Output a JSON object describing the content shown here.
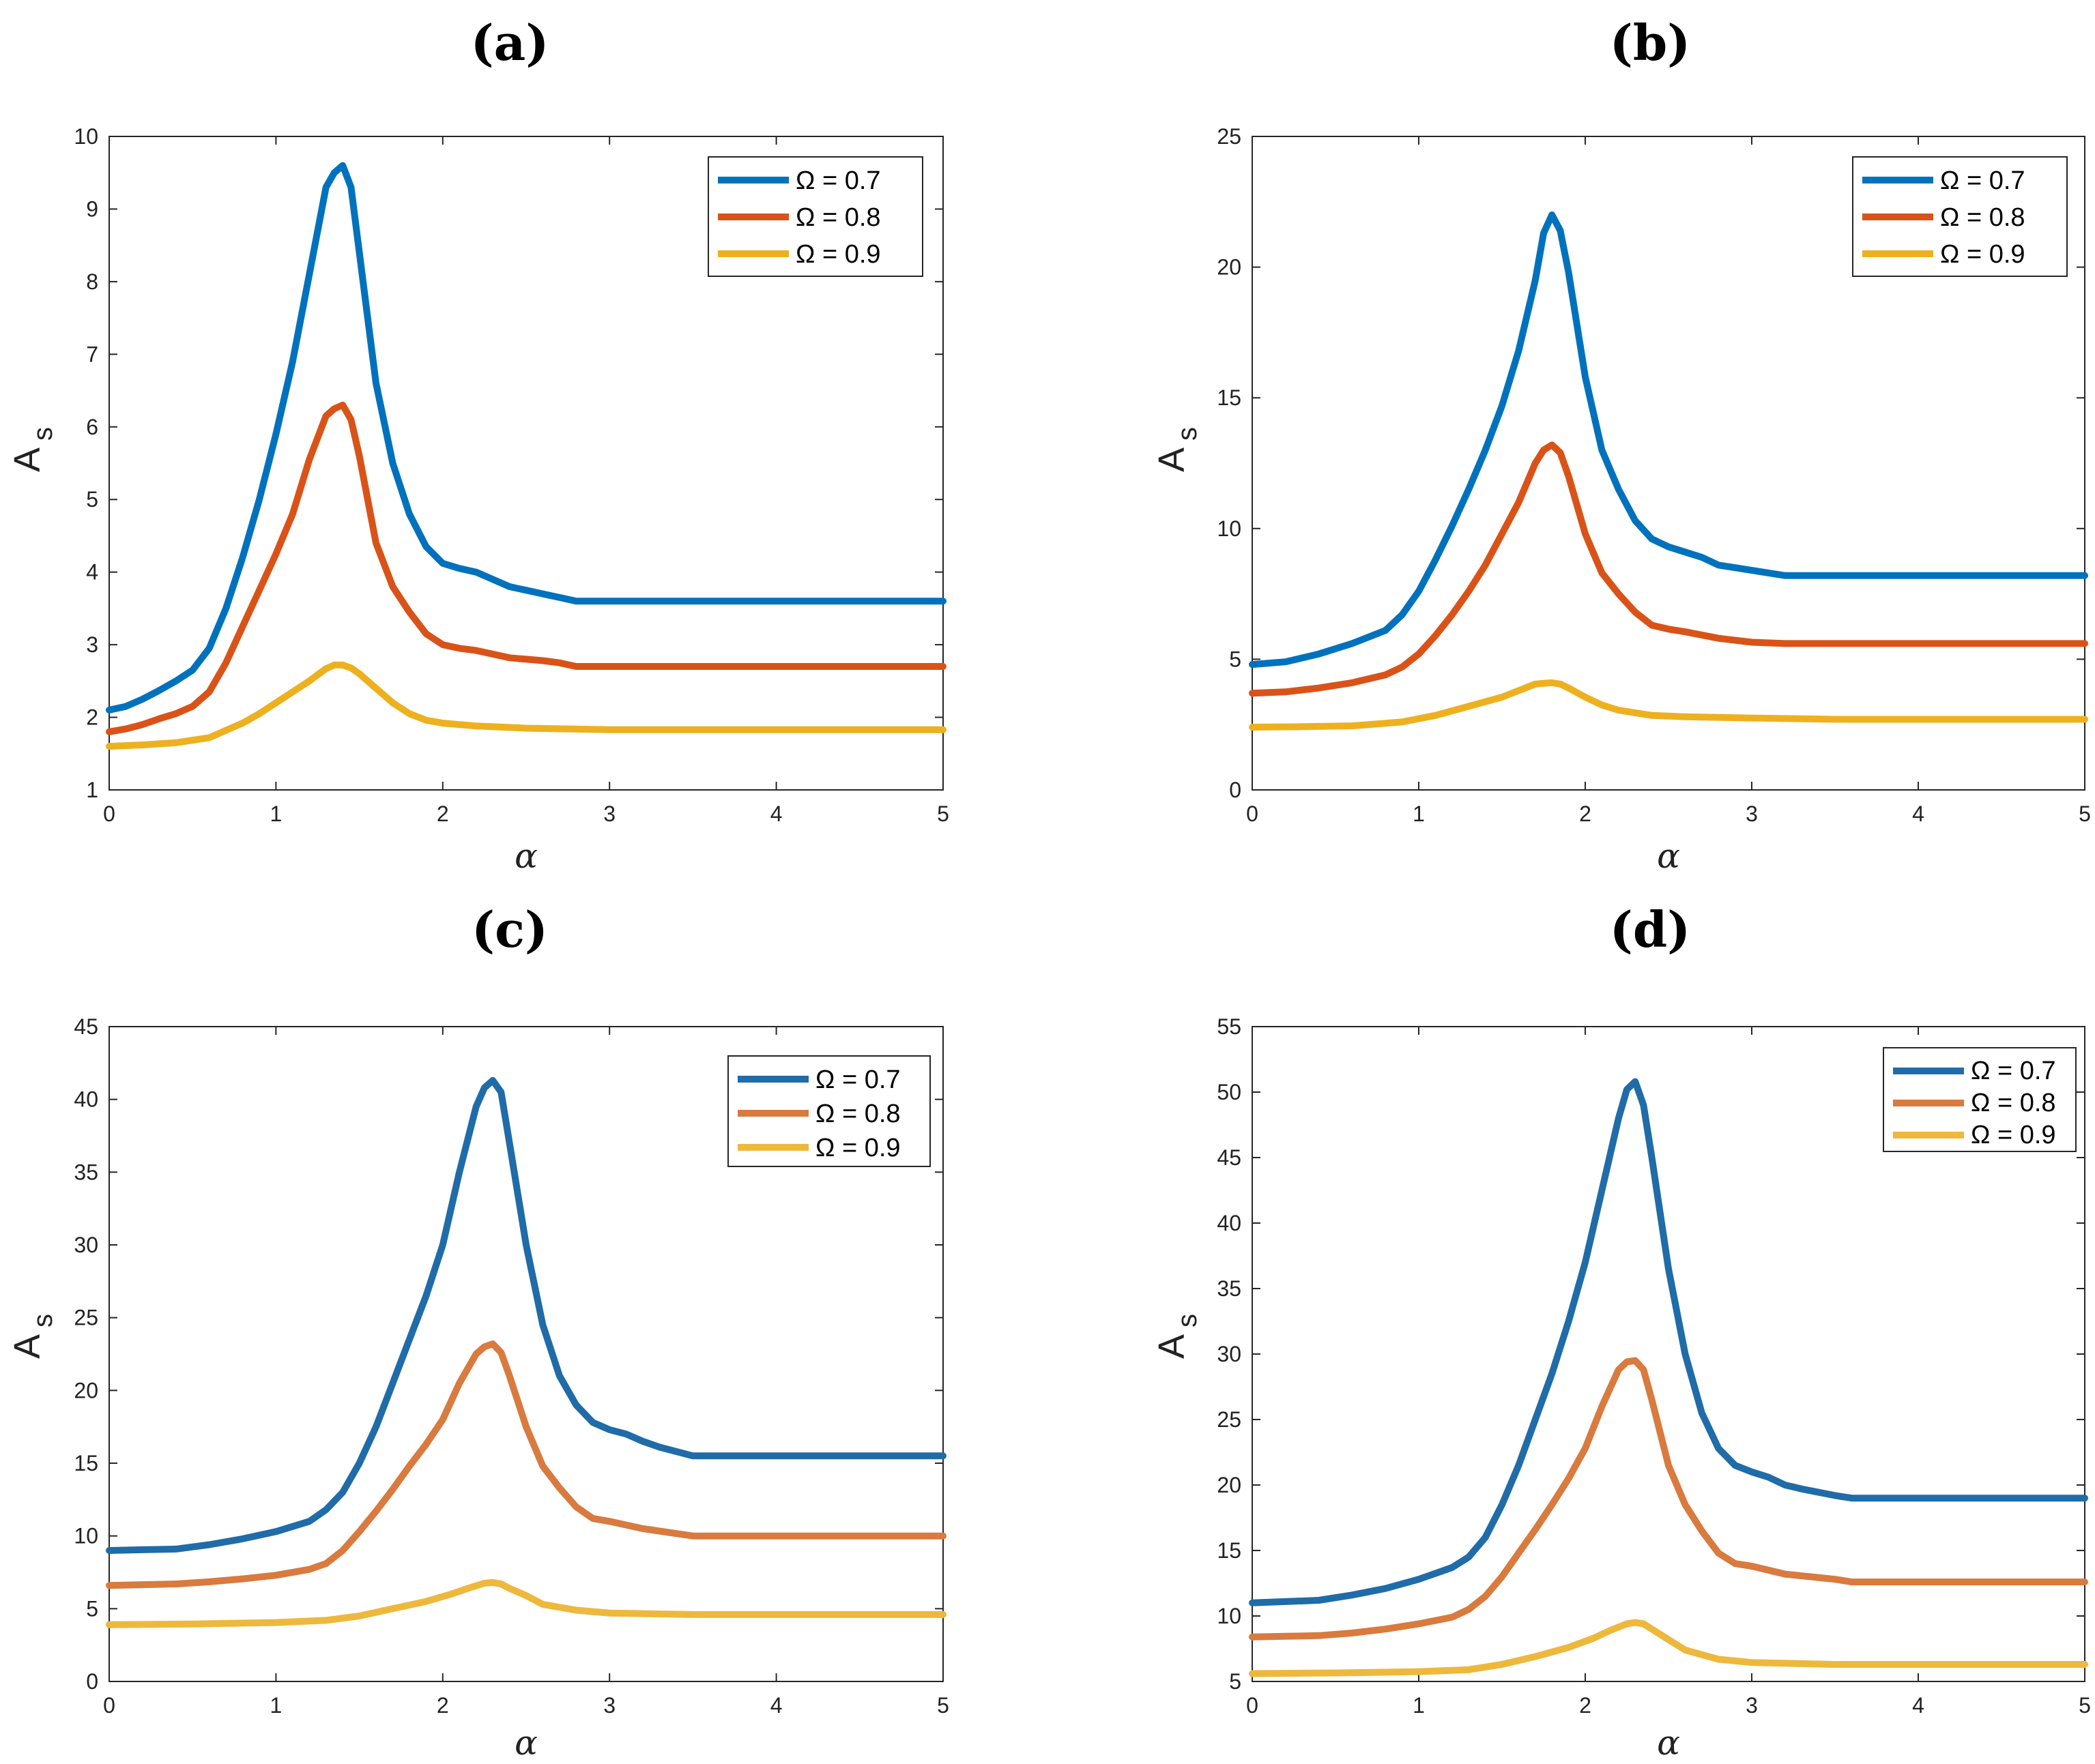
{
  "chart_data": [
    {
      "type": "line",
      "title": "(a)",
      "xlabel": "α",
      "ylabel": "A",
      "ylabel_sub": "s",
      "xlim": [
        0,
        5
      ],
      "ylim": [
        1,
        10
      ],
      "xticks": [
        0,
        1,
        2,
        3,
        4,
        5
      ],
      "yticks": [
        1,
        2,
        3,
        4,
        5,
        6,
        7,
        8,
        9,
        10
      ],
      "grid": false,
      "legend_position": "top-right",
      "series": [
        {
          "name": "Ω = 0.7",
          "color": "#0072BD",
          "x": [
            0,
            0.1,
            0.2,
            0.3,
            0.4,
            0.5,
            0.6,
            0.7,
            0.8,
            0.9,
            1.0,
            1.1,
            1.2,
            1.3,
            1.35,
            1.4,
            1.45,
            1.5,
            1.6,
            1.7,
            1.8,
            1.9,
            2.0,
            2.1,
            2.2,
            2.3,
            2.4,
            2.5,
            2.6,
            2.7,
            2.8,
            2.9,
            3.0,
            3.5,
            4.0,
            4.5,
            5.0
          ],
          "y": [
            2.1,
            2.15,
            2.25,
            2.37,
            2.5,
            2.65,
            2.95,
            3.5,
            4.2,
            5.0,
            5.9,
            6.9,
            8.1,
            9.3,
            9.5,
            9.6,
            9.3,
            8.4,
            6.6,
            5.5,
            4.8,
            4.35,
            4.12,
            4.05,
            4.0,
            3.9,
            3.8,
            3.75,
            3.7,
            3.65,
            3.6,
            3.6,
            3.6,
            3.6,
            3.6,
            3.6,
            3.6
          ]
        },
        {
          "name": "Ω = 0.8",
          "color": "#D95319",
          "x": [
            0,
            0.1,
            0.2,
            0.3,
            0.4,
            0.5,
            0.6,
            0.7,
            0.8,
            0.9,
            1.0,
            1.1,
            1.2,
            1.3,
            1.35,
            1.4,
            1.45,
            1.5,
            1.6,
            1.7,
            1.8,
            1.9,
            2.0,
            2.1,
            2.2,
            2.3,
            2.4,
            2.5,
            2.6,
            2.7,
            2.8,
            3.0,
            3.5,
            4.0,
            4.5,
            5.0
          ],
          "y": [
            1.8,
            1.84,
            1.9,
            1.98,
            2.05,
            2.15,
            2.35,
            2.75,
            3.25,
            3.75,
            4.25,
            4.8,
            5.55,
            6.15,
            6.25,
            6.3,
            6.1,
            5.6,
            4.4,
            3.8,
            3.45,
            3.15,
            3.0,
            2.95,
            2.92,
            2.87,
            2.82,
            2.8,
            2.78,
            2.75,
            2.7,
            2.7,
            2.7,
            2.7,
            2.7,
            2.7
          ]
        },
        {
          "name": "Ω = 0.9",
          "color": "#EDB120",
          "x": [
            0,
            0.2,
            0.4,
            0.6,
            0.7,
            0.8,
            0.9,
            1.0,
            1.1,
            1.2,
            1.3,
            1.35,
            1.4,
            1.45,
            1.5,
            1.6,
            1.7,
            1.8,
            1.9,
            2.0,
            2.2,
            2.5,
            3.0,
            3.5,
            4.0,
            4.5,
            5.0
          ],
          "y": [
            1.6,
            1.62,
            1.65,
            1.72,
            1.82,
            1.92,
            2.05,
            2.2,
            2.35,
            2.5,
            2.67,
            2.72,
            2.72,
            2.68,
            2.6,
            2.4,
            2.2,
            2.05,
            1.96,
            1.92,
            1.88,
            1.85,
            1.83,
            1.83,
            1.83,
            1.83,
            1.83
          ]
        }
      ]
    },
    {
      "type": "line",
      "title": "(b)",
      "xlabel": "α",
      "ylabel": "A",
      "ylabel_sub": "s",
      "xlim": [
        0,
        5
      ],
      "ylim": [
        0,
        25
      ],
      "xticks": [
        0,
        1,
        2,
        3,
        4,
        5
      ],
      "yticks": [
        0,
        5,
        10,
        15,
        20,
        25
      ],
      "grid": false,
      "legend_position": "top-right",
      "series": [
        {
          "name": "Ω = 0.7",
          "color": "#0072BD",
          "x": [
            0,
            0.2,
            0.4,
            0.6,
            0.8,
            0.9,
            1.0,
            1.1,
            1.2,
            1.3,
            1.4,
            1.5,
            1.6,
            1.7,
            1.75,
            1.8,
            1.85,
            1.9,
            2.0,
            2.1,
            2.2,
            2.3,
            2.4,
            2.5,
            2.6,
            2.7,
            2.8,
            3.0,
            3.2,
            3.5,
            4.0,
            4.5,
            5.0
          ],
          "y": [
            4.8,
            4.9,
            5.2,
            5.6,
            6.1,
            6.7,
            7.6,
            8.8,
            10.1,
            11.5,
            13.0,
            14.7,
            16.8,
            19.5,
            21.3,
            22.0,
            21.4,
            19.8,
            15.8,
            13.0,
            11.5,
            10.3,
            9.6,
            9.3,
            9.1,
            8.9,
            8.6,
            8.4,
            8.2,
            8.2,
            8.2,
            8.2,
            8.2
          ]
        },
        {
          "name": "Ω = 0.8",
          "color": "#D95319",
          "x": [
            0,
            0.2,
            0.4,
            0.6,
            0.8,
            0.9,
            1.0,
            1.1,
            1.2,
            1.3,
            1.4,
            1.5,
            1.6,
            1.7,
            1.75,
            1.8,
            1.85,
            1.9,
            2.0,
            2.1,
            2.2,
            2.3,
            2.4,
            2.5,
            2.6,
            2.8,
            3.0,
            3.2,
            3.5,
            4.0,
            4.5,
            5.0
          ],
          "y": [
            3.7,
            3.75,
            3.9,
            4.1,
            4.4,
            4.7,
            5.2,
            5.9,
            6.7,
            7.6,
            8.6,
            9.8,
            11.0,
            12.5,
            13.0,
            13.2,
            12.9,
            12.0,
            9.8,
            8.3,
            7.5,
            6.8,
            6.3,
            6.15,
            6.05,
            5.8,
            5.65,
            5.6,
            5.6,
            5.6,
            5.6,
            5.6
          ]
        },
        {
          "name": "Ω = 0.9",
          "color": "#EDB120",
          "x": [
            0,
            0.3,
            0.6,
            0.9,
            1.1,
            1.3,
            1.5,
            1.6,
            1.7,
            1.75,
            1.8,
            1.85,
            1.9,
            2.0,
            2.1,
            2.2,
            2.4,
            2.6,
            3.0,
            3.5,
            4.0,
            4.5,
            5.0
          ],
          "y": [
            2.4,
            2.42,
            2.45,
            2.6,
            2.85,
            3.2,
            3.55,
            3.8,
            4.05,
            4.08,
            4.1,
            4.05,
            3.9,
            3.55,
            3.25,
            3.05,
            2.85,
            2.8,
            2.75,
            2.7,
            2.7,
            2.7,
            2.7
          ]
        }
      ]
    },
    {
      "type": "line",
      "title": "(c)",
      "xlabel": "α",
      "ylabel": "A",
      "ylabel_sub": "s",
      "xlim": [
        0,
        5
      ],
      "ylim": [
        0,
        45
      ],
      "xticks": [
        0,
        1,
        2,
        3,
        4,
        5
      ],
      "yticks": [
        0,
        5,
        10,
        15,
        20,
        25,
        30,
        35,
        40,
        45
      ],
      "grid": false,
      "legend_position": "top-right",
      "series": [
        {
          "name": "Ω = 0.7",
          "color": "#1F6CA8",
          "x": [
            0,
            0.2,
            0.4,
            0.6,
            0.8,
            1.0,
            1.2,
            1.3,
            1.4,
            1.5,
            1.6,
            1.7,
            1.8,
            1.9,
            2.0,
            2.1,
            2.2,
            2.25,
            2.3,
            2.35,
            2.4,
            2.5,
            2.6,
            2.7,
            2.8,
            2.9,
            3.0,
            3.1,
            3.2,
            3.3,
            3.5,
            4.0,
            4.5,
            5.0
          ],
          "y": [
            9.0,
            9.05,
            9.1,
            9.4,
            9.8,
            10.3,
            11.0,
            11.8,
            13.0,
            15.0,
            17.5,
            20.5,
            23.5,
            26.5,
            30.0,
            35.0,
            39.5,
            40.8,
            41.3,
            40.5,
            37.0,
            30.0,
            24.5,
            21.0,
            19.0,
            17.8,
            17.3,
            17.0,
            16.5,
            16.1,
            15.5,
            15.5,
            15.5,
            15.5
          ]
        },
        {
          "name": "Ω = 0.8",
          "color": "#D97A3E",
          "x": [
            0,
            0.2,
            0.4,
            0.6,
            0.8,
            1.0,
            1.2,
            1.3,
            1.4,
            1.5,
            1.6,
            1.7,
            1.8,
            1.9,
            2.0,
            2.1,
            2.2,
            2.25,
            2.3,
            2.35,
            2.4,
            2.5,
            2.6,
            2.7,
            2.8,
            2.9,
            3.0,
            3.2,
            3.5,
            4.0,
            4.5,
            5.0
          ],
          "y": [
            6.6,
            6.65,
            6.7,
            6.85,
            7.05,
            7.3,
            7.7,
            8.1,
            9.0,
            10.3,
            11.7,
            13.2,
            14.8,
            16.3,
            18.0,
            20.5,
            22.5,
            23.0,
            23.2,
            22.6,
            21.0,
            17.5,
            14.8,
            13.3,
            12.0,
            11.2,
            11.0,
            10.5,
            10.0,
            10.0,
            10.0,
            10.0
          ]
        },
        {
          "name": "Ω = 0.9",
          "color": "#EDB83C",
          "x": [
            0,
            0.5,
            1.0,
            1.3,
            1.5,
            1.7,
            1.9,
            2.05,
            2.15,
            2.25,
            2.3,
            2.35,
            2.4,
            2.5,
            2.6,
            2.8,
            3.0,
            3.5,
            4.0,
            4.5,
            5.0
          ],
          "y": [
            3.9,
            3.95,
            4.05,
            4.2,
            4.5,
            5.0,
            5.5,
            6.0,
            6.4,
            6.75,
            6.8,
            6.7,
            6.4,
            5.9,
            5.3,
            4.9,
            4.7,
            4.6,
            4.6,
            4.6,
            4.6
          ]
        }
      ]
    },
    {
      "type": "line",
      "title": "(d)",
      "xlabel": "α",
      "ylabel": "A",
      "ylabel_sub": "s",
      "xlim": [
        0,
        5
      ],
      "ylim": [
        5,
        55
      ],
      "xticks": [
        0,
        1,
        2,
        3,
        4,
        5
      ],
      "yticks": [
        5,
        10,
        15,
        20,
        25,
        30,
        35,
        40,
        45,
        50,
        55
      ],
      "grid": false,
      "legend_position": "top-right",
      "series": [
        {
          "name": "Ω = 0.7",
          "color": "#1F6CA8",
          "x": [
            0,
            0.2,
            0.4,
            0.6,
            0.8,
            1.0,
            1.2,
            1.3,
            1.4,
            1.5,
            1.6,
            1.7,
            1.8,
            1.9,
            2.0,
            2.1,
            2.2,
            2.25,
            2.3,
            2.35,
            2.4,
            2.5,
            2.6,
            2.7,
            2.8,
            2.9,
            3.0,
            3.1,
            3.2,
            3.3,
            3.5,
            3.6,
            4.0,
            4.5,
            5.0
          ],
          "y": [
            11.0,
            11.1,
            11.2,
            11.6,
            12.1,
            12.8,
            13.7,
            14.5,
            16.0,
            18.5,
            21.5,
            25.0,
            28.5,
            32.5,
            37.0,
            42.5,
            48.0,
            50.2,
            50.8,
            49.0,
            45.0,
            36.5,
            30.0,
            25.5,
            22.8,
            21.5,
            21.0,
            20.6,
            20.0,
            19.7,
            19.2,
            19.0,
            19.0,
            19.0,
            19.0
          ]
        },
        {
          "name": "Ω = 0.8",
          "color": "#D97A3E",
          "x": [
            0,
            0.2,
            0.4,
            0.6,
            0.8,
            1.0,
            1.2,
            1.3,
            1.4,
            1.5,
            1.6,
            1.7,
            1.8,
            1.9,
            2.0,
            2.1,
            2.2,
            2.25,
            2.3,
            2.35,
            2.4,
            2.5,
            2.6,
            2.7,
            2.8,
            2.9,
            3.0,
            3.2,
            3.5,
            3.6,
            4.0,
            4.5,
            5.0
          ],
          "y": [
            8.4,
            8.45,
            8.5,
            8.7,
            9.0,
            9.4,
            9.9,
            10.5,
            11.5,
            13.0,
            14.8,
            16.6,
            18.5,
            20.5,
            22.8,
            26.0,
            28.8,
            29.4,
            29.5,
            28.8,
            26.5,
            21.5,
            18.5,
            16.5,
            14.8,
            14.0,
            13.8,
            13.2,
            12.8,
            12.6,
            12.6,
            12.6,
            12.6
          ]
        },
        {
          "name": "Ω = 0.9",
          "color": "#EDB83C",
          "x": [
            0,
            0.5,
            1.0,
            1.3,
            1.5,
            1.7,
            1.9,
            2.05,
            2.15,
            2.25,
            2.3,
            2.35,
            2.4,
            2.5,
            2.6,
            2.8,
            3.0,
            3.5,
            4.0,
            4.5,
            5.0
          ],
          "y": [
            5.6,
            5.65,
            5.75,
            5.9,
            6.3,
            6.9,
            7.6,
            8.3,
            8.9,
            9.4,
            9.5,
            9.4,
            9.0,
            8.2,
            7.4,
            6.7,
            6.45,
            6.3,
            6.3,
            6.3,
            6.3
          ]
        }
      ]
    }
  ]
}
